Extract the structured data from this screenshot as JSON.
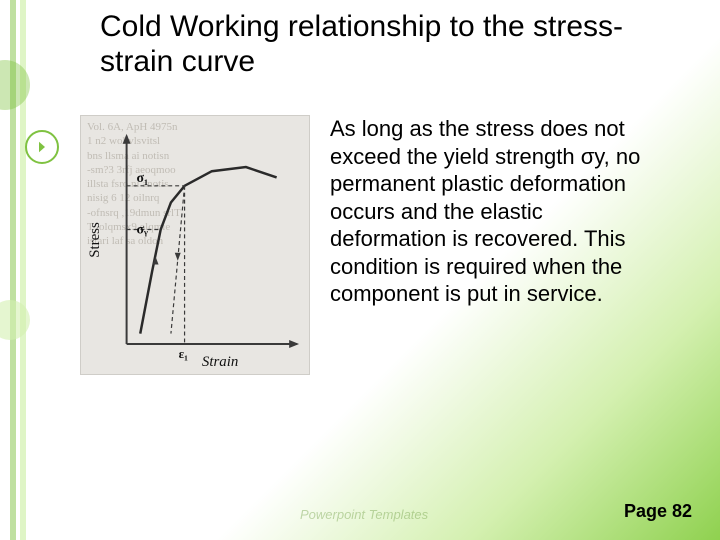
{
  "title": "Cold Working relationship to the stress-strain curve",
  "body": "As long as the stress does not exceed the yield strength σy, no permanent plastic deformation occurs and the elastic deformation is recovered. This condition is required when the component is put in service.",
  "footer": {
    "page_label": "Page 82"
  },
  "logo_hint": "Powerpoint Templates",
  "figure": {
    "type": "line",
    "xlabel": "Strain",
    "ylabel": "Stress",
    "sigma1_label": "σ₁",
    "sigmay_label": "σᵧ",
    "eps1_label": "ε₁",
    "background_color": "#e8e6e2",
    "axis_color": "#3a3a3a",
    "curve_color": "#2a2a2a",
    "dash_color": "#3a3a3a",
    "axis_linewidth": 2,
    "curve_linewidth": 2.5,
    "dash_pattern": "4 3",
    "xlim": [
      0,
      1
    ],
    "ylim": [
      0,
      1
    ],
    "curve_points": [
      [
        0.08,
        0.05
      ],
      [
        0.15,
        0.35
      ],
      [
        0.2,
        0.55
      ],
      [
        0.26,
        0.68
      ],
      [
        0.34,
        0.76
      ],
      [
        0.5,
        0.83
      ],
      [
        0.7,
        0.85
      ],
      [
        0.88,
        0.8
      ]
    ],
    "sigma_y_y": 0.55,
    "sigma1_y": 0.76,
    "eps1_x": 0.34,
    "unload_line": {
      "x1": 0.34,
      "y1": 0.76,
      "x2": 0.26,
      "y2": 0.05
    },
    "ghost_text": "Vol. 6A, ApH 4975n\n1 n2 wol vlsvitsl\nbns llsma ai notisn\n-sm?3 3rfj aeoqmoo\nillsta fsro ni anotis\nnisig 6 12 oilnrq\n-ofnsrq ,19dmun srlT\nT .olqmsx9 olqmie\nistari laf sa oldon"
  },
  "colors": {
    "accent_green": "#7fc241",
    "light_green": "#aee571",
    "pale_green": "#d4f0b0",
    "text": "#000000"
  }
}
